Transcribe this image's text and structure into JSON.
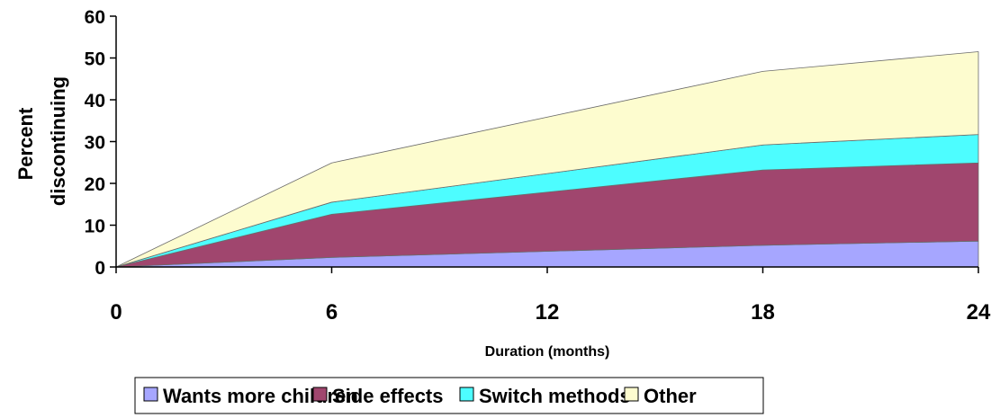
{
  "chart_data": {
    "type": "area",
    "stacked": true,
    "x": [
      0,
      6,
      18,
      24
    ],
    "x_ticks": [
      "0",
      "6",
      "12",
      "18",
      "24"
    ],
    "x_tick_values": [
      0,
      6,
      12,
      18,
      24
    ],
    "xlabel": "Duration (months)",
    "ylabel": "Percent discontinuing",
    "ylabel_lines": [
      "Percent",
      "discontinuing"
    ],
    "ylim": [
      0,
      60
    ],
    "xlim": [
      0,
      24
    ],
    "y_ticks": [
      "0",
      "10",
      "20",
      "30",
      "40",
      "50",
      "60"
    ],
    "y_tick_values": [
      0,
      10,
      20,
      30,
      40,
      50,
      60
    ],
    "grid": false,
    "legend_position": "bottom",
    "series": [
      {
        "name": "Wants more children",
        "values": [
          0,
          2.3,
          5.2,
          6.2
        ],
        "color": "#a6a6ff"
      },
      {
        "name": "Side effects",
        "values": [
          0,
          10.3,
          18.0,
          18.7
        ],
        "color": "#a0466e"
      },
      {
        "name": "Switch methods",
        "values": [
          0,
          2.9,
          6.0,
          6.8
        ],
        "color": "#4dfdff"
      },
      {
        "name": "Other",
        "values": [
          0,
          9.4,
          17.6,
          19.8
        ],
        "color": "#fdfccf"
      }
    ]
  }
}
